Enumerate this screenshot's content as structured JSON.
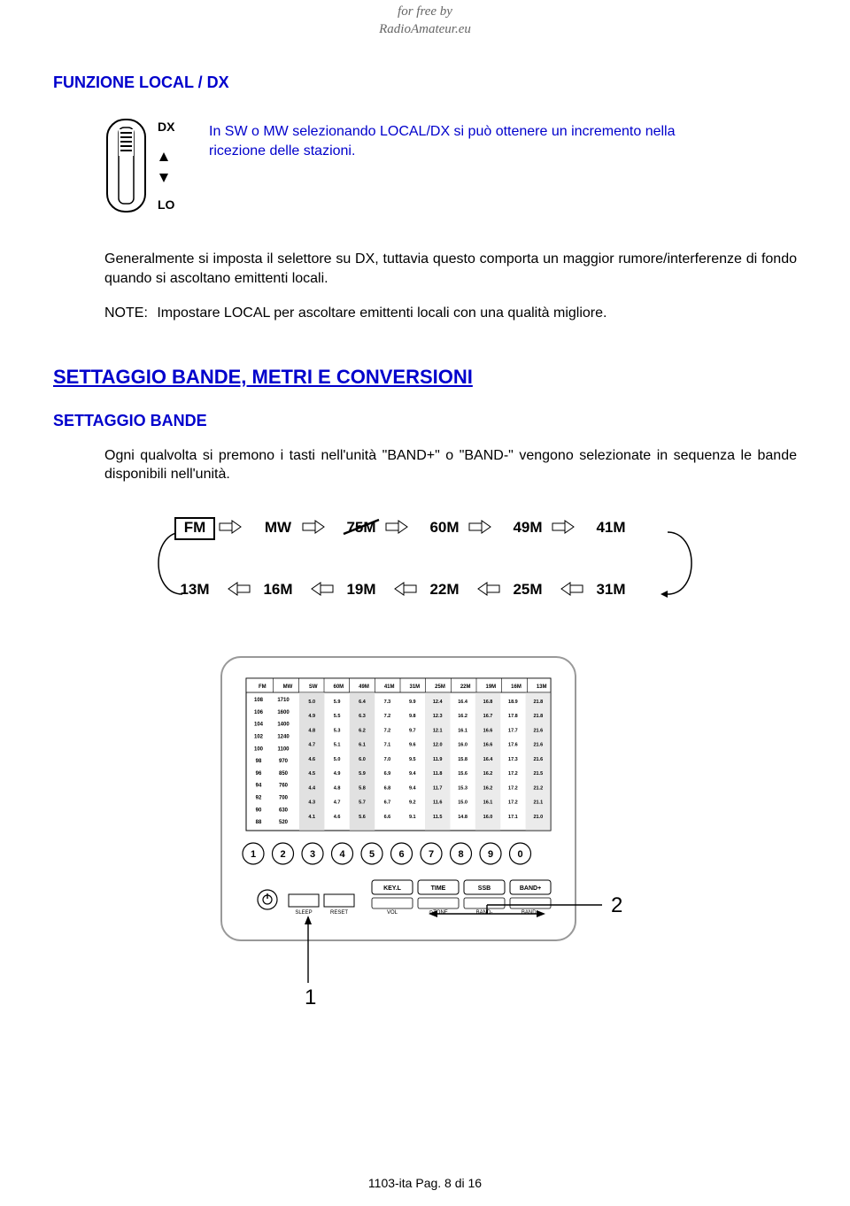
{
  "header_credit": {
    "line1": "for free by",
    "line2": "RadioAmateur.eu"
  },
  "section1": {
    "title": "FUNZIONE LOCAL / DX",
    "switch_labels": {
      "top": "DX",
      "bottom": "LO"
    },
    "intro_text": "In SW o MW selezionando LOCAL/DX si può ottenere un incremento nella ricezione delle stazioni.",
    "body_para": "Generalmente si imposta il selettore su DX, tuttavia questo comporta un maggior rumore/interferenze di fondo quando si ascoltano emittenti locali.",
    "note_label": "NOTE:",
    "note_text": "Impostare LOCAL per ascoltare emittenti locali con una qualità migliore."
  },
  "section2": {
    "heading": "SETTAGGIO BANDE, METRI E CONVERSIONI",
    "sub_heading": "SETTAGGIO BANDE",
    "para": "Ogni qualvolta si premono i tasti nell'unità \"BAND+\" o  \"BAND-\" vengono selezionate in sequenza le bande disponibili nell'unità."
  },
  "band_sequence": {
    "top_row": [
      "FM",
      "MW",
      "75M",
      "60M",
      "49M",
      "41M"
    ],
    "bottom_row": [
      "13M",
      "16M",
      "19M",
      "22M",
      "25M",
      "31M"
    ],
    "boxed_first": true,
    "strike_third": true
  },
  "device_panel": {
    "callout_1": "1",
    "callout_2": "2",
    "button_numbers": [
      "1",
      "2",
      "3",
      "4",
      "5",
      "6",
      "7",
      "8",
      "9",
      "0"
    ],
    "small_buttons_row1": [
      "SLEEP",
      "RESET"
    ],
    "small_buttons_row2": [
      "KEY.L",
      "TIME",
      "SSB",
      "BAND+"
    ],
    "header_bands": [
      "FM",
      "MW",
      "SW",
      "60M",
      "49M",
      "41M",
      "31M",
      "25M",
      "22M",
      "19M",
      "16M",
      "13M"
    ],
    "left_col": [
      "108",
      "106",
      "104",
      "102",
      "100",
      "98",
      "96",
      "94",
      "92",
      "90",
      "88"
    ],
    "mw_col": [
      "1710",
      "1600",
      "1400",
      "1240",
      "1100",
      "970",
      "850",
      "760",
      "700",
      "630",
      "520"
    ],
    "data_rows": [
      [
        "5.0",
        "5.9",
        "6.4",
        "7.3",
        "9.9",
        "12.4",
        "16.4",
        "16.8",
        "18.9",
        "21.8"
      ],
      [
        "4.9",
        "5.5",
        "6.3",
        "7.2",
        "9.8",
        "12.3",
        "16.2",
        "16.7",
        "17.8",
        "21.8"
      ],
      [
        "4.8",
        "5.3",
        "6.2",
        "7.2",
        "9.7",
        "12.1",
        "16.1",
        "16.6",
        "17.7",
        "21.6"
      ],
      [
        "4.7",
        "5.1",
        "6.1",
        "7.1",
        "9.6",
        "12.0",
        "16.0",
        "16.6",
        "17.6",
        "21.6"
      ],
      [
        "4.6",
        "5.0",
        "6.0",
        "7.0",
        "9.5",
        "11.9",
        "15.8",
        "16.4",
        "17.3",
        "21.6"
      ],
      [
        "4.5",
        "4.9",
        "5.9",
        "6.9",
        "9.4",
        "11.8",
        "15.6",
        "16.2",
        "17.2",
        "21.5"
      ],
      [
        "4.4",
        "4.8",
        "5.8",
        "6.8",
        "9.4",
        "11.7",
        "15.3",
        "16.2",
        "17.2",
        "21.2"
      ],
      [
        "4.3",
        "4.7",
        "5.7",
        "6.7",
        "9.2",
        "11.6",
        "15.0",
        "16.1",
        "17.2",
        "21.1"
      ],
      [
        "4.1",
        "4.6",
        "5.6",
        "6.6",
        "9.1",
        "11.5",
        "14.8",
        "16.0",
        "17.1",
        "21.0"
      ]
    ]
  },
  "footer": "1103-ita Pag. 8 di 16",
  "colors": {
    "blue": "#0000cc",
    "text": "#000000",
    "grey": "#666666",
    "bg": "#ffffff"
  }
}
